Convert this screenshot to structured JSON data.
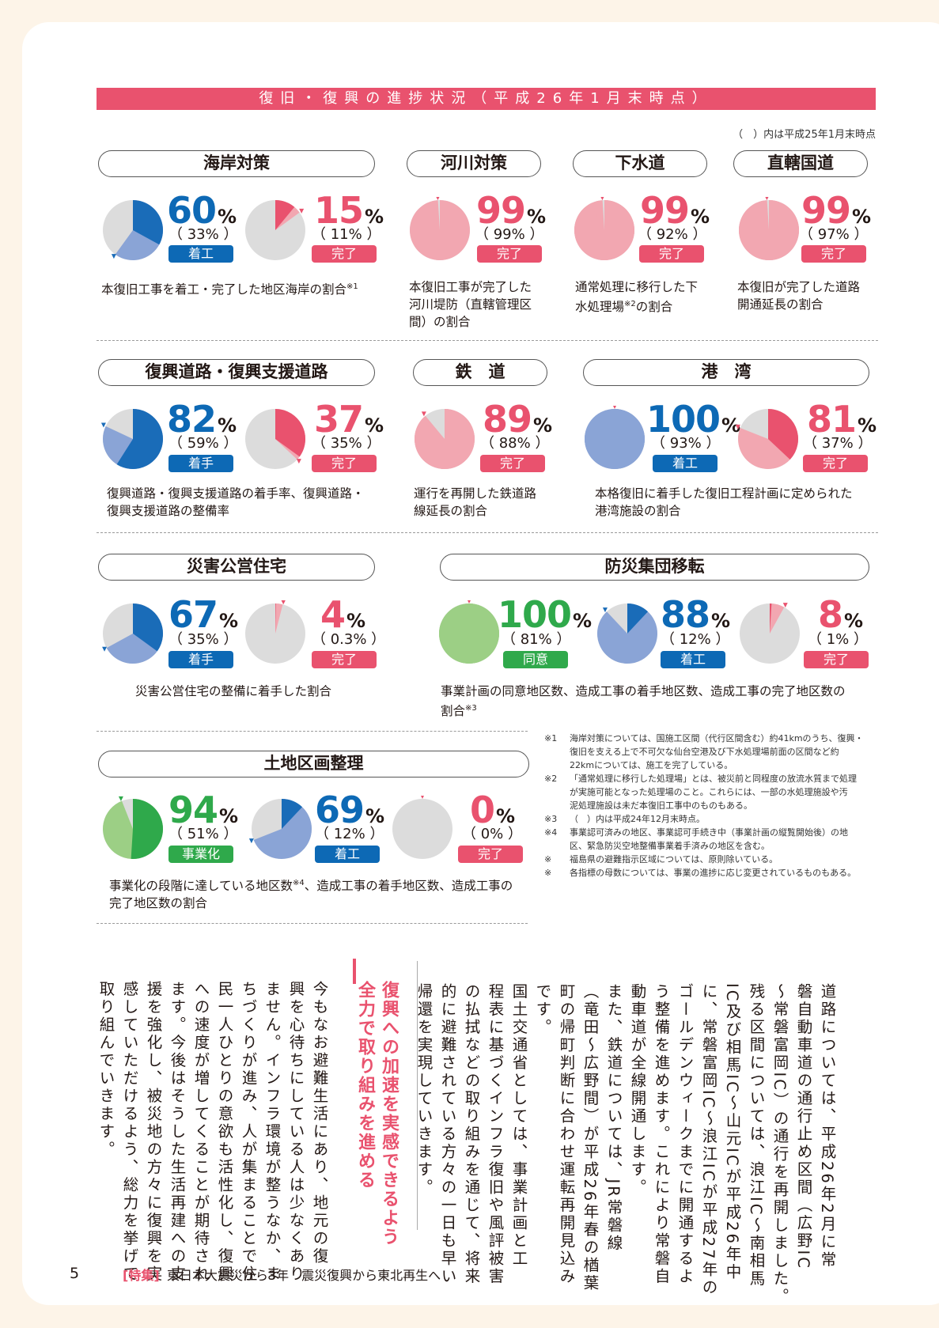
{
  "banner": "復旧・復興の進捗状況（平成26年1月末時点）",
  "top_note": "（　）内は平成25年1月末時点",
  "sections": {
    "kaigan": {
      "title": "海岸対策",
      "m1": {
        "value": 60,
        "unit": "%",
        "prev": "（ 33% ）",
        "label": "着工"
      },
      "m2": {
        "value": 15,
        "unit": "%",
        "prev": "（ 11% ）",
        "label": "完了"
      },
      "desc": "本復旧工事を着工・完了した地区海岸の割合",
      "desc_note": "※1"
    },
    "kasen": {
      "title": "河川対策",
      "m1": {
        "value": 99,
        "unit": "%",
        "prev": "（ 99% ）",
        "label": "完了"
      },
      "desc_lines": [
        "本復旧工事が完了した",
        "河川堤防（直轄管理区",
        "間）の割合"
      ]
    },
    "gesuido": {
      "title": "下水道",
      "m1": {
        "value": 99,
        "unit": "%",
        "prev": "（ 92% ）",
        "label": "完了"
      },
      "desc_line1": "通常処理に移行した下",
      "desc_line2a": "水処理場",
      "desc_note": "※2",
      "desc_line2b": "の割合"
    },
    "kokudo": {
      "title": "直轄国道",
      "m1": {
        "value": 99,
        "unit": "%",
        "prev": "（ 97% ）",
        "label": "完了"
      },
      "desc_lines": [
        "本復旧が完了した道路",
        "開通延長の割合"
      ]
    },
    "fukko_doro": {
      "title": "復興道路・復興支援道路",
      "m1": {
        "value": 82,
        "unit": "%",
        "prev": "（ 59% ）",
        "label": "着手"
      },
      "m2": {
        "value": 37,
        "unit": "%",
        "prev": "（ 35% ）",
        "label": "完了"
      },
      "desc_lines": [
        "復興道路・復興支援道路の着手率、復興道路・",
        "復興支援道路の整備率"
      ]
    },
    "tetsudo": {
      "title": "鉄　道",
      "m1": {
        "value": 89,
        "unit": "%",
        "prev": "（ 88% ）",
        "label": "完了"
      },
      "desc_lines": [
        "運行を再開した鉄道路",
        "線延長の割合"
      ]
    },
    "kowan": {
      "title": "港　湾",
      "m1": {
        "value": 100,
        "unit": "%",
        "prev": "（ 93% ）",
        "label": "着工"
      },
      "m2": {
        "value": 81,
        "unit": "%",
        "prev": "（ 37% ）",
        "label": "完了"
      },
      "desc_lines": [
        "本格復旧に着手した復旧工程計画に定められた",
        "港湾施設の割合"
      ]
    },
    "jutaku": {
      "title": "災害公営住宅",
      "m1": {
        "value": 67,
        "unit": "%",
        "prev": "（ 35% ）",
        "label": "着手"
      },
      "m2": {
        "value": 4,
        "unit": "%",
        "prev": "（ 0.3% ）",
        "label": "完了"
      },
      "desc": "災害公営住宅の整備に着手した割合"
    },
    "iten": {
      "title": "防災集団移転",
      "m1": {
        "value": 100,
        "unit": "%",
        "prev": "（ 81% ）",
        "label": "同意"
      },
      "m2": {
        "value": 88,
        "unit": "%",
        "prev": "（ 12% ）",
        "label": "着工"
      },
      "m3": {
        "value": 8,
        "unit": "%",
        "prev": "（ 1% ）",
        "label": "完了"
      },
      "desc_line1": "事業計画の同意地区数、造成工事の着手地区数、造成工事の完了地区数の",
      "desc_line2": "割合",
      "desc_note": "※3"
    },
    "kukaku": {
      "title": "土地区画整理",
      "m1": {
        "value": 94,
        "unit": "%",
        "prev": "（ 51% ）",
        "label": "事業化"
      },
      "m2": {
        "value": 69,
        "unit": "%",
        "prev": "（ 12% ）",
        "label": "着工"
      },
      "m3": {
        "value": 0,
        "unit": "%",
        "prev": "（ 0% ）",
        "label": "完了"
      },
      "desc_line1a": "事業化の段階に達している地区数",
      "desc_note": "※4",
      "desc_line1b": "、造成工事の着手地区数、造成工事の",
      "desc_line2": "完了地区数の割合"
    }
  },
  "footnotes": [
    {
      "mark": "※1",
      "lines": [
        "海岸対策については、国施工区間（代行区間含む）約41kmのうち、復興・",
        "復旧を支える上で不可欠な仙台空港及び下水処理場前面の区間など約",
        "22kmについては、施工を完了している。"
      ]
    },
    {
      "mark": "※2",
      "lines": [
        "「通常処理に移行した処理場」とは、被災前と同程度の放流水質まで処理",
        "が実施可能となった処理場のこと。これらには、一部の水処理施設や汚",
        "泥処理施設は未だ本復旧工事中のものもある。"
      ]
    },
    {
      "mark": "※3",
      "lines": [
        "（　）内は平成24年12月末時点。"
      ]
    },
    {
      "mark": "※4",
      "lines": [
        "事業認可済みの地区、事業認可手続き中（事業計画の縦覧開始後）の地",
        "区、緊急防災空地整備事業着手済みの地区を含む。"
      ]
    },
    {
      "mark": "※",
      "lines": [
        "福島県の避難指示区域については、原則除いている。"
      ]
    },
    {
      "mark": "※",
      "lines": [
        "各指標の母数については、事業の進捗に応じ変更されているものもある。"
      ]
    }
  ],
  "body_col1": [
    "道路については、平成26年2月に常",
    "磐自動車道の通行止め区間（広野IC",
    "～常磐富岡IC）の通行を再開しました。",
    "残る区間については、浪江IC～南相馬",
    "IC及び相馬IC～山元ICが平成26年中",
    "に、常磐富岡IC～浪江ICが平成27年の",
    "ゴールデンウィークまでに開通するよ",
    "う整備を進めます。これにより常磐自",
    "動車道が全線開通します。",
    "また、鉄道については、JR常磐線",
    "（竜田～広野間）が平成26年春の楢葉",
    "町の帰町判断に合わせ運転再開見込み",
    "です。",
    "国土交通省としては、事業計画と工",
    "程表に基づくインフラ復旧や風評被害",
    "の払拭などの取り組みを通じて、将来",
    "的に避難されている方々の一日も早い",
    "帰還を実現していきます。"
  ],
  "heading_lines": [
    "復興への加速を実感できるよう",
    "全力で取り組みを進める"
  ],
  "body_col2": [
    "今もなお避難生活にあり、地元の復",
    "興を心待ちにしている人は少なくあり",
    "ません。インフラ環境が整うなか、ま",
    "ちづくりが進み、人が集まることで住",
    "民一人ひとりの意欲も活性化し、復興",
    "への速度が増してくることが期待され",
    "ます。今後はそうした生活再建への支",
    "援を強化し、被災地の方々に復興を実",
    "感していただけるよう、総力を挙げて",
    "取り組んでいきます。"
  ],
  "footer": {
    "page": "5",
    "tag": "[特集]",
    "text": "東日本大震災から3年　震災復興から東北再生へ"
  },
  "colors": {
    "accent": "#e9526e",
    "blue": "#0d69b5",
    "green": "#2fa94b"
  }
}
